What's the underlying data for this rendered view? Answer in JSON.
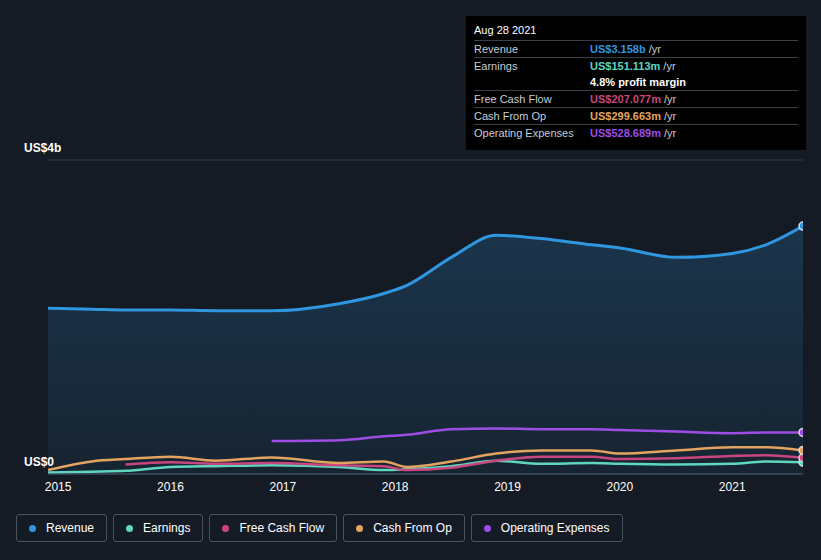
{
  "chart_data": {
    "type": "line",
    "x": [
      2014.91,
      2015.3,
      2015.6,
      2016,
      2016.4,
      2016.9,
      2017.5,
      2017.9,
      2018.1,
      2018.5,
      2018.9,
      2019.3,
      2019.75,
      2020,
      2020.5,
      2021,
      2021.3,
      2021.63
    ],
    "xlim": [
      2014.91,
      2021.63
    ],
    "xticks": [
      2015,
      2016,
      2017,
      2018,
      2019,
      2020,
      2021
    ],
    "ylim": [
      0,
      4
    ],
    "yticks": [
      {
        "value": 0,
        "label": "US$0"
      },
      {
        "value": 4,
        "label": "US$4b"
      }
    ],
    "grid": true,
    "legend": "bottom",
    "series": [
      {
        "name": "Revenue",
        "type": "area",
        "color": "#2f96e0",
        "values": [
          2.11,
          2.1,
          2.09,
          2.09,
          2.08,
          2.08,
          2.17,
          2.3,
          2.4,
          2.76,
          3.04,
          3.0,
          2.92,
          2.88,
          2.76,
          2.81,
          2.92,
          3.158
        ]
      },
      {
        "name": "Earnings",
        "type": "line",
        "color": "#5ed6c0",
        "values": [
          0.02,
          0.03,
          0.04,
          0.09,
          0.1,
          0.11,
          0.09,
          0.05,
          0.06,
          0.1,
          0.17,
          0.13,
          0.14,
          0.13,
          0.12,
          0.13,
          0.16,
          0.151
        ]
      },
      {
        "name": "Free Cash Flow",
        "type": "line",
        "color": "#c8467e",
        "values": [
          null,
          null,
          0.12,
          0.15,
          0.13,
          0.14,
          0.11,
          0.1,
          0.05,
          0.08,
          0.17,
          0.22,
          0.22,
          0.19,
          0.2,
          0.23,
          0.24,
          0.207
        ]
      },
      {
        "name": "Cash From Op",
        "type": "line",
        "color": "#e3a45f",
        "values": [
          0.05,
          0.16,
          0.19,
          0.22,
          0.17,
          0.21,
          0.14,
          0.16,
          0.09,
          0.16,
          0.26,
          0.3,
          0.3,
          0.26,
          0.3,
          0.34,
          0.34,
          0.3
        ]
      },
      {
        "name": "Operating Expenses",
        "type": "line",
        "color": "#9d4ce6",
        "values": [
          null,
          null,
          null,
          null,
          null,
          0.42,
          0.43,
          0.48,
          0.5,
          0.57,
          0.58,
          0.57,
          0.57,
          0.56,
          0.54,
          0.52,
          0.53,
          0.529
        ]
      }
    ],
    "annotations": {
      "title": "Aug 28 2021",
      "rows": [
        {
          "label": "Revenue",
          "value": "US$3.158b",
          "unit": "/yr"
        },
        {
          "label": "Earnings",
          "value": "US$151.113m",
          "unit": "/yr",
          "note": "4.8% profit margin"
        },
        {
          "label": "Free Cash Flow",
          "value": "US$207.077m",
          "unit": "/yr"
        },
        {
          "label": "Cash From Op",
          "value": "US$299.663m",
          "unit": "/yr"
        },
        {
          "label": "Operating Expenses",
          "value": "US$528.689m",
          "unit": "/yr"
        }
      ]
    }
  }
}
